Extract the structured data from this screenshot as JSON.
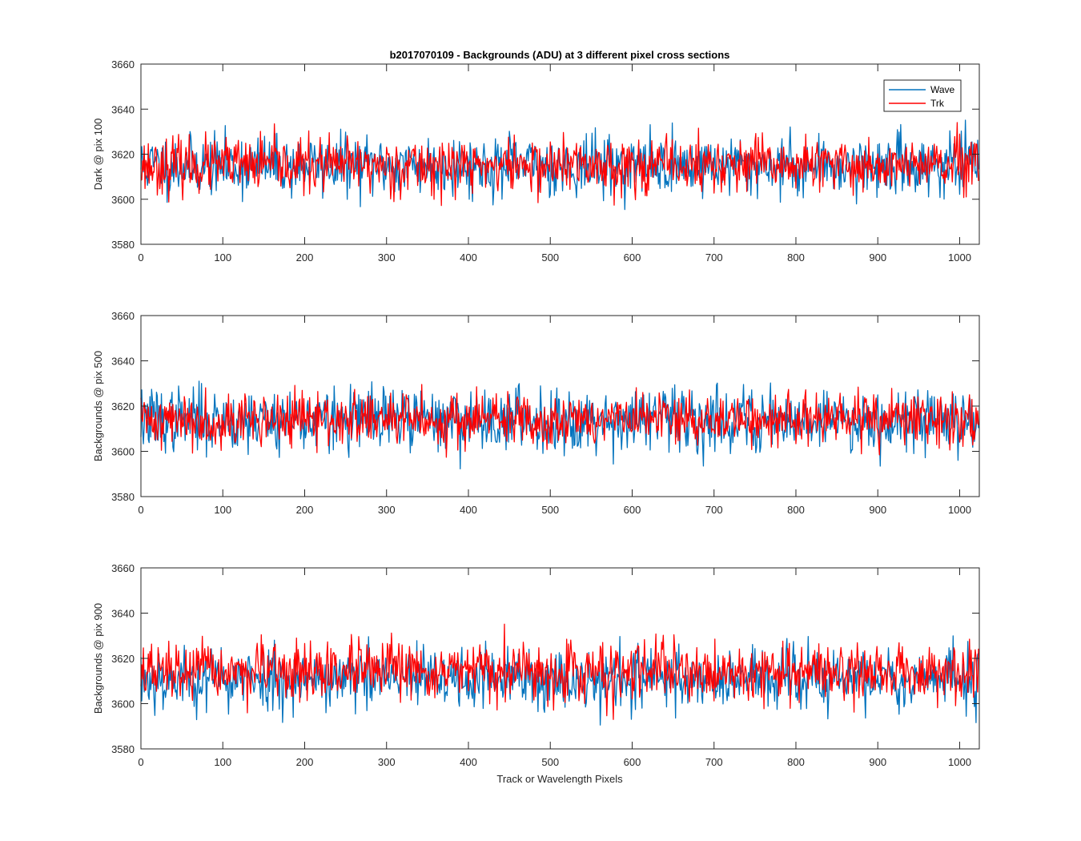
{
  "chart_data": [
    {
      "type": "line",
      "title": "b2017070109 - Backgrounds (ADU) at 3 different pixel cross sections",
      "xlabel": "",
      "ylabel": "Dark @ pix 100",
      "xlim": [
        0,
        1024
      ],
      "ylim": [
        3580,
        3660
      ],
      "xticks": [
        0,
        100,
        200,
        300,
        400,
        500,
        600,
        700,
        800,
        900,
        1000
      ],
      "yticks": [
        3580,
        3600,
        3620,
        3640,
        3660
      ],
      "grid": false,
      "legend": {
        "position": "top-right",
        "entries": [
          "Wave",
          "Trk"
        ]
      },
      "series": [
        {
          "name": "Wave",
          "color": "#0072BD",
          "mean": 3615,
          "sigma": 6.5,
          "seed": 11,
          "n": 1024
        },
        {
          "name": "Trk",
          "color": "#FF0000",
          "mean": 3615,
          "sigma": 6.0,
          "seed": 23,
          "n": 1024
        }
      ]
    },
    {
      "type": "line",
      "title": "",
      "xlabel": "",
      "ylabel": "Backgrounds @ pix 500",
      "xlim": [
        0,
        1024
      ],
      "ylim": [
        3580,
        3660
      ],
      "xticks": [
        0,
        100,
        200,
        300,
        400,
        500,
        600,
        700,
        800,
        900,
        1000
      ],
      "yticks": [
        3580,
        3600,
        3620,
        3640,
        3660
      ],
      "grid": false,
      "series": [
        {
          "name": "Wave",
          "color": "#0072BD",
          "mean": 3614,
          "sigma": 7.0,
          "seed": 37,
          "n": 1024
        },
        {
          "name": "Trk",
          "color": "#FF0000",
          "mean": 3614,
          "sigma": 5.8,
          "seed": 41,
          "n": 1024
        }
      ]
    },
    {
      "type": "line",
      "title": "",
      "xlabel": "Track or Wavelength Pixels",
      "ylabel": "Backgrounds @ pix 900",
      "xlim": [
        0,
        1024
      ],
      "ylim": [
        3580,
        3660
      ],
      "xticks": [
        0,
        100,
        200,
        300,
        400,
        500,
        600,
        700,
        800,
        900,
        1000
      ],
      "yticks": [
        3580,
        3600,
        3620,
        3640,
        3660
      ],
      "grid": false,
      "series": [
        {
          "name": "Wave",
          "color": "#0072BD",
          "mean": 3611,
          "sigma": 6.8,
          "seed": 53,
          "n": 1024
        },
        {
          "name": "Trk",
          "color": "#FF0000",
          "mean": 3614,
          "sigma": 6.2,
          "seed": 67,
          "n": 1024
        }
      ]
    }
  ]
}
